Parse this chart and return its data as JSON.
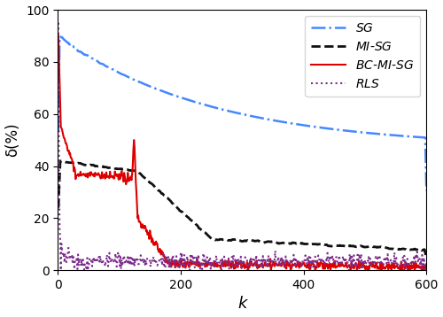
{
  "xlabel": "k",
  "ylabel": "δ(%)",
  "xlim": [
    0,
    600
  ],
  "ylim": [
    0,
    100
  ],
  "yticks": [
    0,
    20,
    40,
    60,
    80,
    100
  ],
  "xticks": [
    0,
    200,
    400,
    600
  ],
  "SG_color": "#4488FF",
  "MISG_color": "#111111",
  "BCMISG_color": "#DD0000",
  "RLS_color": "#7B2D8B"
}
